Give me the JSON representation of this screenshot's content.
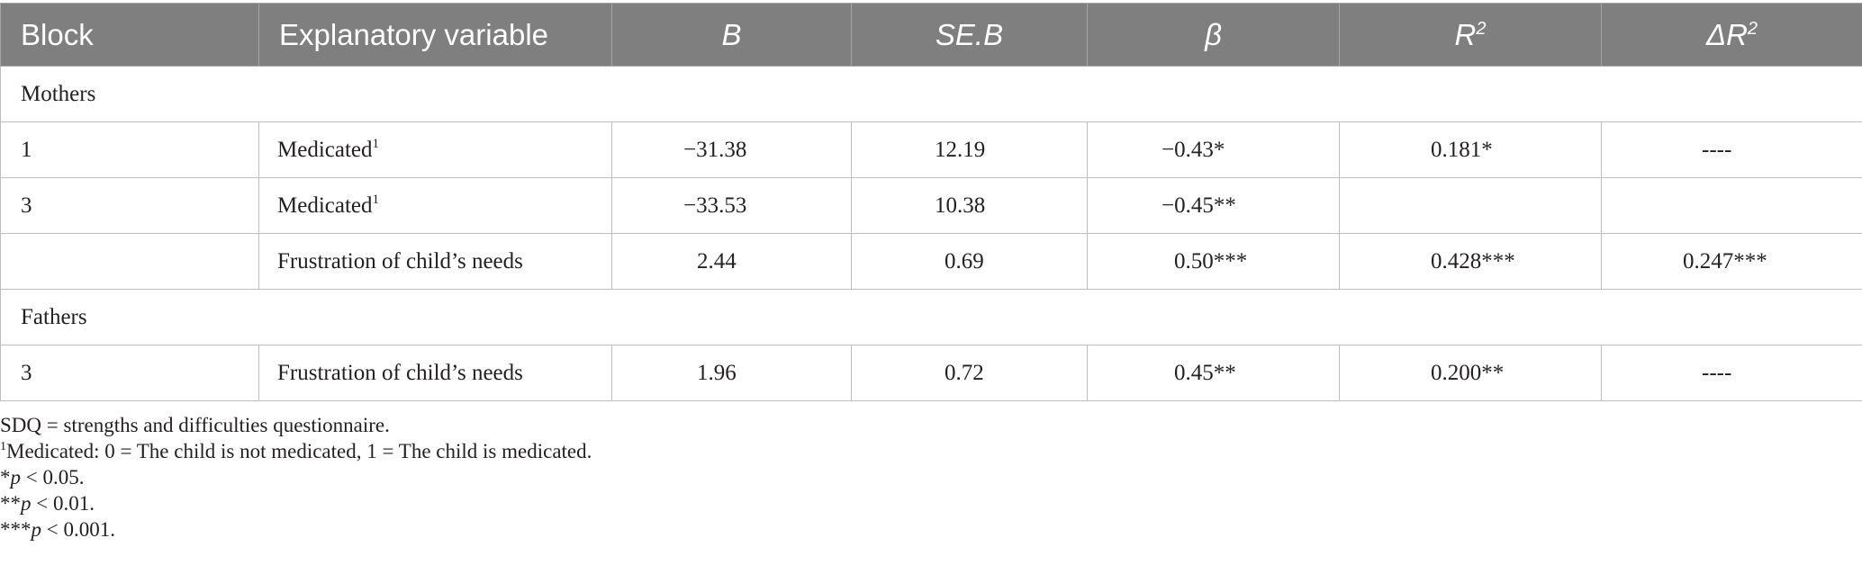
{
  "table": {
    "headers": {
      "block": "Block",
      "variable": "Explanatory variable",
      "b": "B",
      "se": "SE.B",
      "beta": "β",
      "r2_base": "R",
      "r2_sup": "2",
      "dr2_base": "ΔR",
      "dr2_sup": "2"
    },
    "groups": [
      {
        "label": "Mothers",
        "rows": [
          {
            "block": "1",
            "variable": "Medicated",
            "variable_sup": "1",
            "b": "−31.38",
            "se": "12.19",
            "beta": "−0.43*",
            "r2": "0.181*",
            "dr2": "----"
          },
          {
            "block": "3",
            "variable": "Medicated",
            "variable_sup": "1",
            "b": "−33.53",
            "se": "10.38",
            "beta": "−0.45**",
            "r2": "",
            "dr2": ""
          },
          {
            "block": "",
            "variable": "Frustration of child’s needs",
            "variable_sup": "",
            "b": "2.44",
            "se": "0.69",
            "beta": "0.50***",
            "r2": "0.428***",
            "dr2": "0.247***"
          }
        ]
      },
      {
        "label": "Fathers",
        "rows": [
          {
            "block": "3",
            "variable": "Frustration of child’s needs",
            "variable_sup": "",
            "b": "1.96",
            "se": "0.72",
            "beta": "0.45**",
            "r2": "0.200**",
            "dr2": "----"
          }
        ]
      }
    ]
  },
  "notes": {
    "line1": "SDQ = strengths and difficulties questionnaire.",
    "line2_sup": "1",
    "line2": "Medicated: 0 = The child is not medicated, 1 = The child is medicated.",
    "line3_prefix": "*",
    "line3_p": "p",
    "line3_rest": " < 0.05.",
    "line4_prefix": "**",
    "line4_p": "p",
    "line4_rest": " < 0.01.",
    "line5_prefix": "***",
    "line5_p": "p",
    "line5_rest": " < 0.001."
  }
}
